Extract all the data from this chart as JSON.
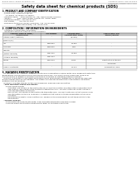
{
  "title": "Safety data sheet for chemical products (SDS)",
  "header_left": "Product Name: Lithium Ion Battery Cell",
  "header_right_line1": "Substance Control: SDS-LIB-00010",
  "header_right_line2": "Established / Revision: Dec.7.2010",
  "section1_title": "1. PRODUCT AND COMPANY IDENTIFICATION",
  "section1_lines": [
    "  - Product name: Lithium Ion Battery Cell",
    "  - Product code: Cylindrical-type cell",
    "       IXY 88600, IXY 88650, IXY 88600A",
    "  - Company name:     Sanyo Electric Co., Ltd., Mobile Energy Company",
    "  - Address:           2001  Kamiyokawa, Sumoto City, Hyogo, Japan",
    "  - Telephone number:  +81-799-26-4111",
    "  - Fax number:        +81-799-26-4120",
    "  - Emergency telephone number (Weekday): +81-799-26-2062",
    "                           (Night and holiday): +81-799-26-4101"
  ],
  "section2_title": "2. COMPOSITION / INFORMATION ON INGREDIENTS",
  "section2_intro": "  - Substance or preparation: Preparation",
  "section2_table_header": "  - Information about the chemical nature of product",
  "table_col1_header": [
    "Common chemical name /",
    "Several name"
  ],
  "table_col2_header": [
    "CAS number",
    ""
  ],
  "table_col3_header": [
    "Concentration /",
    "Concentration range"
  ],
  "table_col4_header": [
    "Classification and",
    "hazard labeling"
  ],
  "table_rows": [
    [
      "Lithium cobalt (tentative)",
      "-",
      "(30-60%)",
      "-"
    ],
    [
      "(LiMn2Co)O4)",
      "",
      "",
      ""
    ],
    [
      "Iron",
      "7439-89-6",
      "15-25%",
      "-"
    ],
    [
      "Aluminum",
      "7429-90-5",
      "2-8%",
      "-"
    ],
    [
      "Graphite",
      "",
      "",
      ""
    ],
    [
      "(Natural graphite)",
      "7782-42-5",
      "10-25%",
      "-"
    ],
    [
      "(Artificial graphite)",
      "7782-44-0",
      "",
      ""
    ],
    [
      "Copper",
      "7440-50-8",
      "5-15%",
      "Sensitization of the skin"
    ],
    [
      "",
      "",
      "",
      "group R42"
    ],
    [
      "Organic electrolyte",
      "-",
      "10-20%",
      "Inflammatory liquid"
    ]
  ],
  "section3_title": "3. HAZARDS IDENTIFICATION",
  "section3_para1": [
    "   For the battery cell, chemical materials are stored in a hermetically sealed metal case, designed to withstand",
    "temperatures and pressures encountered during normal use. As a result, during normal use, there is no",
    "physical danger of ignition or explosion and there is no danger of hazardous materials leakage.",
    "   However, if exposed to a fire added mechanical shock, decomposed, emitted electric whole city miss-use,",
    "the gas release valve will be operated. The battery cell case will be breached of fire-portions, hazardous",
    "materials may be released.",
    "   Moreover, if heated strongly by the surrounding fire, some gas may be emitted."
  ],
  "section3_bullet1_title": "  - Most important hazard and effects:",
  "section3_bullet1_lines": [
    "       Human health effects:",
    "           Inhalation: The release of the electrolyte has an anesthesia action and stimulates a respiratory tract.",
    "           Skin contact: The release of the electrolyte stimulates a skin. The electrolyte skin contact causes a",
    "           sore and stimulation on the skin.",
    "           Eye contact: The release of the electrolyte stimulates eyes. The electrolyte eye contact causes a sore",
    "           and stimulation on the eye. Especially, a substance that causes a strong inflammation of the eye is",
    "           contained.",
    "           Environmental effects: Since a battery cell remains in the environment, do not throw out it into the",
    "           environment."
  ],
  "section3_bullet2_title": "  - Specific hazards:",
  "section3_bullet2_lines": [
    "       If the electrolyte contacts with water, it will generate detrimental hydrogen fluoride.",
    "       Since the sealed electrolyte is inflammable liquid, do not bring close to fire."
  ],
  "bg_color": "#ffffff",
  "text_color": "#000000",
  "line_color": "#555555",
  "table_header_bg": "#cccccc"
}
